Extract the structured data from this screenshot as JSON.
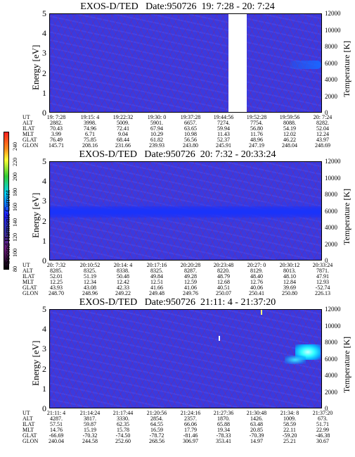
{
  "colorbar": {
    "label": "Second Harmonic Current",
    "ticks": [
      "240",
      "220",
      "200",
      "180",
      "160",
      "140",
      "120",
      "100",
      "80"
    ]
  },
  "chart_data": [
    {
      "type": "heatmap",
      "title": "EXOS-D/TED   Date:950726  19: 7:28 - 20: 7:24",
      "ylabel": "Energy [eV]",
      "y2label": "Temperature [K]",
      "ylim": [
        0,
        5
      ],
      "y2lim": [
        0,
        12000
      ],
      "yticks": [
        "0",
        "1",
        "2",
        "3",
        "4",
        "5"
      ],
      "y2ticks": [
        "0",
        "2000",
        "4000",
        "6000",
        "8000",
        "10000",
        "12000"
      ],
      "columns": [
        "19: 7:28",
        "19:15: 4",
        "19:22:32",
        "19:30: 0",
        "19:37:28",
        "19:44:56",
        "19:52:28",
        "19:59:56",
        "20: 7:24"
      ],
      "rows": [
        {
          "label": "UT",
          "values": [
            "19: 7:28",
            "19:15: 4",
            "19:22:32",
            "19:30: 0",
            "19:37:28",
            "19:44:56",
            "19:52:28",
            "19:59:56",
            "20: 7:24"
          ]
        },
        {
          "label": "ALT",
          "values": [
            "2882.",
            "3998.",
            "5009.",
            "5901.",
            "6657.",
            "7274.",
            "7754.",
            "8088.",
            "8282."
          ]
        },
        {
          "label": "ILAT",
          "values": [
            "70.43",
            "74.96",
            "72.41",
            "67.94",
            "63.65",
            "59.94",
            "56.80",
            "54.19",
            "52.04"
          ]
        },
        {
          "label": "MLT",
          "values": [
            "3.99",
            "6.71",
            "9.04",
            "10.29",
            "10.98",
            "11.43",
            "11.76",
            "12.02",
            "12.24"
          ]
        },
        {
          "label": "GLAT",
          "values": [
            "76.49",
            "75.85",
            "68.44",
            "61.82",
            "56.56",
            "52.37",
            "48.96",
            "46.22",
            "43.97"
          ]
        },
        {
          "label": "GLON",
          "values": [
            "145.71",
            "208.16",
            "231.66",
            "239.93",
            "243.80",
            "245.91",
            "247.19",
            "248.04",
            "248.69"
          ]
        }
      ]
    },
    {
      "type": "heatmap",
      "title": "EXOS-D/TED   Date:950726  20: 7:32 - 20:33:24",
      "ylabel": "Energy [eV]",
      "y2label": "Temperature [K]",
      "ylim": [
        0,
        5
      ],
      "y2lim": [
        0,
        12000
      ],
      "yticks": [
        "0",
        "1",
        "2",
        "3",
        "4",
        "5"
      ],
      "y2ticks": [
        "0",
        "2000",
        "4000",
        "6000",
        "8000",
        "10000",
        "12000"
      ],
      "rows": [
        {
          "label": "UT",
          "values": [
            "20: 7:32",
            "20:10:52",
            "20:14: 4",
            "20:17:16",
            "20:20:28",
            "20:23:48",
            "20:27: 0",
            "20:30:12",
            "20:33:24"
          ]
        },
        {
          "label": "ALT",
          "values": [
            "8285.",
            "8325.",
            "8338.",
            "8325.",
            "8287.",
            "8220.",
            "8129.",
            "8013.",
            "7871."
          ]
        },
        {
          "label": "ILAT",
          "values": [
            "52.01",
            "51.19",
            "50.48",
            "49.84",
            "49.28",
            "48.79",
            "48.40",
            "48.10",
            "47.91"
          ]
        },
        {
          "label": "MLT",
          "values": [
            "12.25",
            "12.34",
            "12.42",
            "12.51",
            "12.59",
            "12.68",
            "12.76",
            "12.84",
            "12.93"
          ]
        },
        {
          "label": "GLAT",
          "values": [
            "43.93",
            "43.08",
            "42.33",
            "41.66",
            "41.06",
            "40.51",
            "40.06",
            "39.69",
            "-52.74"
          ]
        },
        {
          "label": "GLON",
          "values": [
            "248.70",
            "248.96",
            "249.22",
            "249.48",
            "249.76",
            "250.07",
            "250.41",
            "250.80",
            "226.13"
          ]
        }
      ]
    },
    {
      "type": "heatmap",
      "title": "EXOS-D/TED   Date:950726  21:11: 4 - 21:37:20",
      "ylabel": "Energy [eV]",
      "y2label": "Temperature [K]",
      "ylim": [
        0,
        5
      ],
      "y2lim": [
        0,
        12000
      ],
      "yticks": [
        "0",
        "1",
        "2",
        "3",
        "4",
        "5"
      ],
      "y2ticks": [
        "0",
        "2000",
        "4000",
        "6000",
        "8000",
        "10000",
        "12000"
      ],
      "rows": [
        {
          "label": "UT",
          "values": [
            "21:11: 4",
            "21:14:24",
            "21:17:44",
            "21:20:56",
            "21:24:16",
            "21:27:36",
            "21:30:48",
            "21:34: 8",
            "21:37:20"
          ]
        },
        {
          "label": "ALT",
          "values": [
            "4287.",
            "3817.",
            "3330.",
            "2854.",
            "2357.",
            "1870.",
            "1426.",
            "1009.",
            "673."
          ]
        },
        {
          "label": "ILAT",
          "values": [
            "57.51",
            "59.87",
            "62.35",
            "64.55",
            "66.06",
            "65.88",
            "63.48",
            "58.59",
            "51.71"
          ]
        },
        {
          "label": "MLT",
          "values": [
            "14.76",
            "15.19",
            "15.78",
            "16.59",
            "17.79",
            "19.34",
            "20.85",
            "22.11",
            "22.99"
          ]
        },
        {
          "label": "GLAT",
          "values": [
            "-66.69",
            "-70.32",
            "-74.50",
            "-78.72",
            "-81.46",
            "-78.33",
            "-70.39",
            "-59.20",
            "-46.38"
          ]
        },
        {
          "label": "GLON",
          "values": [
            "240.04",
            "244.58",
            "252.60",
            "268.56",
            "306.97",
            "353.41",
            "14.97",
            "25.21",
            "30.67"
          ]
        }
      ]
    }
  ]
}
